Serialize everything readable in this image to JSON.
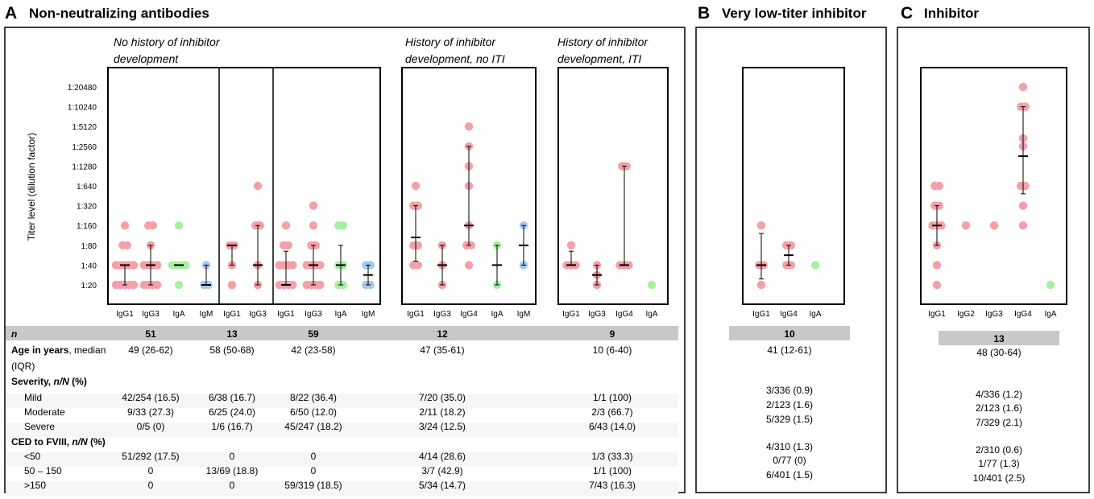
{
  "panels": {
    "A": {
      "letter": "A",
      "title": "Non-neutralizing antibodies"
    },
    "B": {
      "letter": "B",
      "title": "Very low-titer inhibitor"
    },
    "C": {
      "letter": "C",
      "title": "Inhibitor"
    }
  },
  "ylabel": "Titer level (dilution factor)",
  "colors": {
    "IgG1": "#f4a0a6",
    "IgG2": "#f4a0a6",
    "IgG3": "#f4a0a6",
    "IgG4": "#f4a0a6",
    "IgA": "#a6f0a0",
    "IgM": "#a6c8f0"
  },
  "chart_data": {
    "type": "scatter",
    "y_scale": "log2 titer",
    "y_ticks": [
      "1:20",
      "1:40",
      "1:80",
      "1:160",
      "1:320",
      "1:640",
      "1:1280",
      "1:2560",
      "1:5120",
      "1:10240",
      "1:20480"
    ],
    "groups": [
      {
        "id": "g1",
        "label_lines": [
          "No history of inhibitor",
          "development"
        ],
        "categories": [
          "IgG1",
          "IgG3",
          "IgA",
          "IgM"
        ],
        "points": {
          "IgG1": [
            1,
            1,
            1,
            1,
            1,
            1,
            2,
            2,
            2,
            2,
            2,
            3,
            3,
            4
          ],
          "IgG3": [
            1,
            1,
            1,
            1,
            2,
            2,
            2,
            2,
            3,
            4,
            4
          ],
          "IgA": [
            1,
            2,
            2,
            2,
            2,
            4
          ],
          "IgM": [
            1,
            1,
            2
          ]
        },
        "median": {
          "IgG1": 2,
          "IgG3": 2,
          "IgA": 2,
          "IgM": 1
        },
        "iqr": {
          "IgG1": [
            1,
            2
          ],
          "IgG3": [
            1,
            3
          ],
          "IgA": null,
          "IgM": [
            1,
            2
          ]
        }
      },
      {
        "id": "g2",
        "label_lines": [],
        "categories": [
          "IgG1",
          "IgG3"
        ],
        "points": {
          "IgG1": [
            1,
            2,
            3,
            3
          ],
          "IgG3": [
            1,
            2,
            4,
            4,
            6
          ]
        },
        "median": {
          "IgG1": 3,
          "IgG3": 2
        },
        "iqr": {
          "IgG1": [
            2,
            3
          ],
          "IgG3": [
            1,
            4
          ]
        }
      },
      {
        "id": "g3",
        "label_lines": [],
        "categories": [
          "IgG1",
          "IgG3",
          "IgA",
          "IgM"
        ],
        "points": {
          "IgG1": [
            1,
            1,
            1,
            1,
            2,
            2,
            2,
            2,
            3,
            3,
            4
          ],
          "IgG3": [
            1,
            1,
            1,
            1,
            2,
            2,
            2,
            2,
            3,
            3,
            4,
            5
          ],
          "IgA": [
            1,
            1,
            2,
            2,
            4,
            4
          ],
          "IgM": [
            1,
            1,
            2,
            2
          ]
        },
        "median": {
          "IgG1": 1,
          "IgG3": 2,
          "IgA": 2,
          "IgM": 1.5
        },
        "iqr": {
          "IgG1": [
            1,
            2.7
          ],
          "IgG3": [
            1,
            3
          ],
          "IgA": [
            1,
            3
          ],
          "IgM": [
            1,
            2
          ]
        }
      },
      {
        "id": "g4",
        "label_lines": [
          "History of inhibitor",
          "development, no ITI"
        ],
        "categories": [
          "IgG1",
          "IgG3",
          "IgG4",
          "IgA",
          "IgM"
        ],
        "points": {
          "IgG1": [
            2,
            2,
            3,
            3,
            5,
            5,
            6
          ],
          "IgG3": [
            1,
            2,
            3
          ],
          "IgG4": [
            2,
            3,
            3,
            4,
            6,
            7,
            8,
            9
          ],
          "IgA": [
            1,
            3
          ],
          "IgM": [
            2,
            4
          ]
        },
        "median": {
          "IgG1": 3.4,
          "IgG3": 2,
          "IgG4": 4,
          "IgA": 2,
          "IgM": 3
        },
        "iqr": {
          "IgG1": [
            2.2,
            5
          ],
          "IgG3": [
            1,
            3
          ],
          "IgG4": [
            3,
            8
          ],
          "IgA": [
            1,
            3
          ],
          "IgM": [
            2,
            4
          ]
        }
      },
      {
        "id": "g5",
        "label_lines": [
          "History of inhibitor",
          "development, ITI"
        ],
        "categories": [
          "IgG1",
          "IgG3",
          "IgG4",
          "IgA"
        ],
        "points": {
          "IgG1": [
            2,
            2,
            2,
            3
          ],
          "IgG3": [
            1,
            1.5,
            2
          ],
          "IgG4": [
            2,
            2,
            2,
            7,
            7
          ],
          "IgA": [
            1
          ]
        },
        "median": {
          "IgG1": 2,
          "IgG3": 1.5,
          "IgG4": 2,
          "IgA": null
        },
        "iqr": {
          "IgG1": [
            2,
            2.7
          ],
          "IgG3": [
            1,
            2
          ],
          "IgG4": [
            2,
            7
          ],
          "IgA": null
        }
      },
      {
        "id": "gB",
        "label_lines": [],
        "categories": [
          "IgG1",
          "IgG4",
          "IgA"
        ],
        "points": {
          "IgG1": [
            1,
            2,
            2,
            4
          ],
          "IgG4": [
            2,
            2,
            3,
            3
          ],
          "IgA": [
            2
          ]
        },
        "median": {
          "IgG1": 2,
          "IgG4": 2.5
        },
        "iqr": {
          "IgG1": [
            1.3,
            3.6
          ],
          "IgG4": [
            2,
            3
          ]
        }
      },
      {
        "id": "gC",
        "label_lines": [],
        "categories": [
          "IgG1",
          "IgG2",
          "IgG3",
          "IgG4",
          "IgA"
        ],
        "points": {
          "IgG1": [
            1,
            2,
            3,
            4,
            4,
            4,
            5,
            5,
            6,
            6
          ],
          "IgG2": [
            4
          ],
          "IgG3": [
            4
          ],
          "IgG4": [
            4,
            5,
            6,
            6,
            8,
            8.4,
            10,
            10,
            11
          ],
          "IgA": [
            1
          ]
        },
        "median": {
          "IgG1": 4,
          "IgG4": 7.5
        },
        "iqr": {
          "IgG1": [
            3,
            5
          ],
          "IgG4": [
            5.6,
            10
          ]
        }
      }
    ]
  },
  "tableA": {
    "rows": [
      {
        "label": "n",
        "style": "n",
        "values": [
          "51",
          "13",
          "59",
          "12",
          "9"
        ]
      },
      {
        "label": "Age in years",
        "label_rest": ", median",
        "label_line2": "(IQR)",
        "style": "bold2",
        "values": [
          "49 (26-62)",
          "58 (50-68)",
          "42 (23-58)",
          "47 (35-61)",
          "10 (6-40)"
        ]
      },
      {
        "label": "Severity, ",
        "label_it": "n/N",
        "label_tail": " (%)",
        "style": "head",
        "values": []
      },
      {
        "label": "Mild",
        "style": "sub",
        "values": [
          "42/254 (16.5)",
          "6/38 (16.7)",
          "8/22 (36.4)",
          "7/20 (35.0)",
          "1/1 (100)"
        ]
      },
      {
        "label": "Moderate",
        "style": "sub",
        "values": [
          "9/33 (27.3)",
          "6/25 (24.0)",
          "6/50 (12.0)",
          "2/11 (18.2)",
          "2/3 (66.7)"
        ]
      },
      {
        "label": "Severe",
        "style": "sub",
        "values": [
          "0/5 (0)",
          "1/6 (16.7)",
          "45/247 (18.2)",
          "3/24 (12.5)",
          "6/43 (14.0)"
        ]
      },
      {
        "label": "CED to FVIII, ",
        "label_it": "n/N",
        "label_tail": " (%)",
        "style": "head",
        "values": []
      },
      {
        "label": "<50",
        "style": "sub",
        "values": [
          "51/292 (17.5)",
          "0",
          "0",
          "4/14 (28.6)",
          "1/3 (33.3)"
        ]
      },
      {
        "label": "50 – 150",
        "style": "sub",
        "values": [
          "0",
          "13/69 (18.8)",
          "0",
          "3/7 (42.9)",
          "1/1 (100)"
        ]
      },
      {
        "label": ">150",
        "style": "sub",
        "values": [
          "0",
          "0",
          "59/319 (18.5)",
          "5/34 (14.7)",
          "7/43 (16.3)"
        ]
      }
    ]
  },
  "tableB": {
    "n": "10",
    "age": "41 (12-61)",
    "mild": "3/336 (0.9)",
    "moderate": "2/123 (1.6)",
    "severe": "5/329 (1.5)",
    "lt50": "4/310 (1.3)",
    "mid": "0/77 (0)",
    "gt150": "6/401 (1.5)"
  },
  "tableC": {
    "n": "13",
    "age": "48 (30-64)",
    "mild": "4/336 (1.2)",
    "moderate": "2/123 (1.6)",
    "severe": "7/329 (2.1)",
    "lt50": "2/310 (0.6)",
    "mid": "1/77 (1.3)",
    "gt150": "10/401 (2.5)"
  }
}
